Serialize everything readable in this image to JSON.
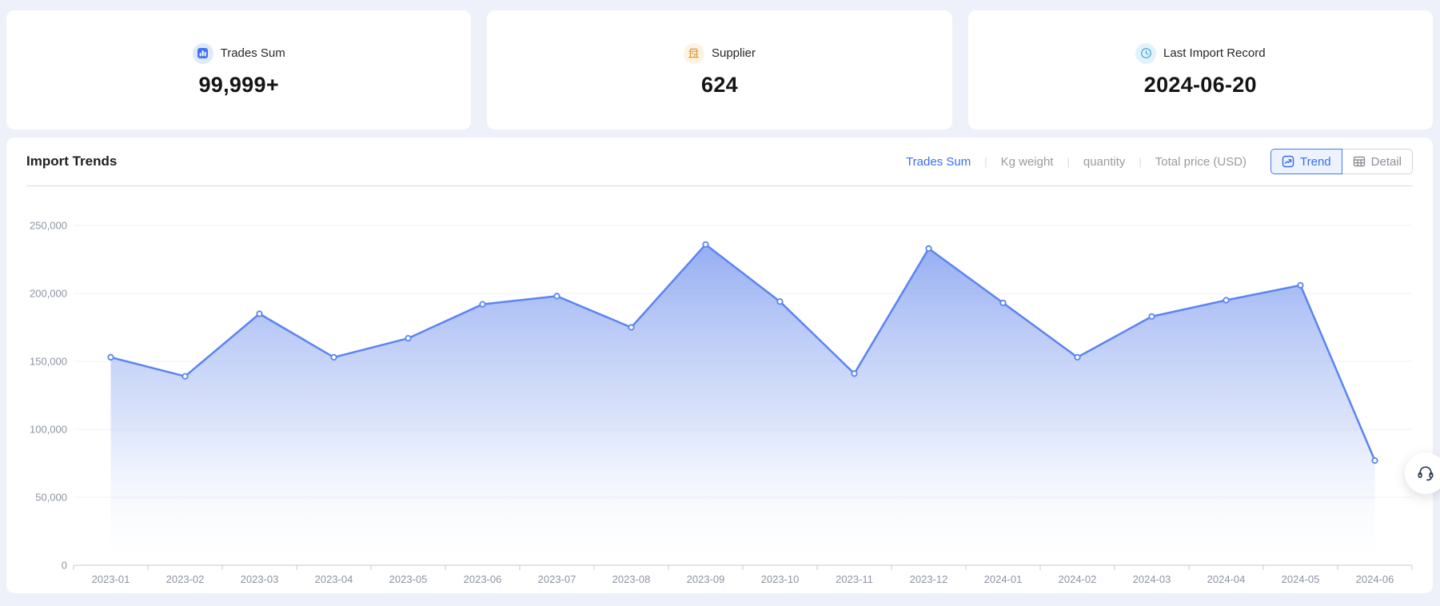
{
  "colors": {
    "page_bg": "#eef1f9",
    "accent_blue": "#3a6cf0",
    "line_blue": "#5b84f2",
    "icon_blue": "#4173f4",
    "icon_orange": "#e09a3a",
    "icon_cyan": "#41a6dd",
    "inactive_gray": "#9b9b9b"
  },
  "stat_cards": [
    {
      "icon": "bar-chart-icon",
      "label": "Trades Sum",
      "value": "99,999+"
    },
    {
      "icon": "storefront-icon",
      "label": "Supplier",
      "value": "624"
    },
    {
      "icon": "clock-icon",
      "label": "Last Import Record",
      "value": "2024-06-20"
    }
  ],
  "panel": {
    "title": "Import Trends",
    "tab_separator": "|",
    "metric_tabs": [
      {
        "label": "Trades Sum",
        "active": true
      },
      {
        "label": "Kg weight",
        "active": false
      },
      {
        "label": "quantity",
        "active": false
      },
      {
        "label": "Total price (USD)",
        "active": false
      }
    ],
    "view_buttons": [
      {
        "label": "Trend",
        "icon": "trend-chart-icon",
        "active": true
      },
      {
        "label": "Detail",
        "icon": "table-icon",
        "active": false
      }
    ]
  },
  "support": {
    "icon": "headset-icon"
  },
  "chart_data": {
    "type": "area",
    "title": "Import Trends",
    "x": [
      "2023-01",
      "2023-02",
      "2023-03",
      "2023-04",
      "2023-05",
      "2023-06",
      "2023-07",
      "2023-08",
      "2023-09",
      "2023-10",
      "2023-11",
      "2023-12",
      "2024-01",
      "2024-02",
      "2024-03",
      "2024-04",
      "2024-05",
      "2024-06"
    ],
    "series": [
      {
        "name": "Trades Sum",
        "values": [
          153000,
          139000,
          185000,
          153000,
          167000,
          192000,
          198000,
          175000,
          236000,
          194000,
          141000,
          233000,
          193000,
          153000,
          183000,
          195000,
          206000,
          77000
        ]
      }
    ],
    "ylim": [
      0,
      250000
    ],
    "y_tick_step": 50000,
    "grid": true,
    "legend": "none",
    "line_color": "#5b84f2",
    "marker": "open-circle",
    "area_top_color": "#7e9cef",
    "area_bottom_color": "#ffffff"
  }
}
